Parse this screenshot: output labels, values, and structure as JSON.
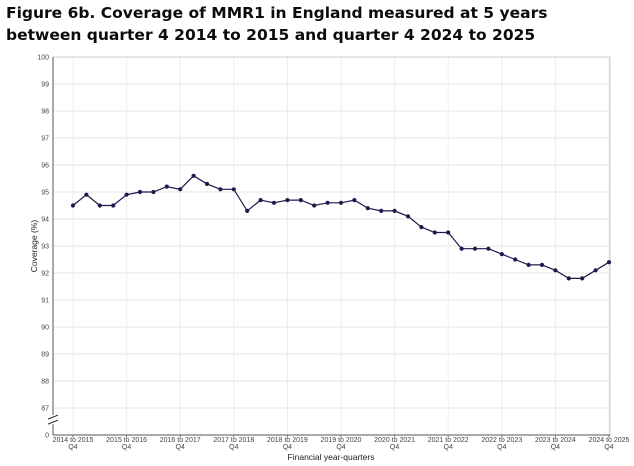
{
  "chart_data": {
    "type": "line",
    "title": "Figure 6b. Coverage of MMR1 in England measured at 5 years between quarter 4 2014 to 2015 and quarter 4 2024 to 2025",
    "xlabel": "Financial year-quarters",
    "ylabel": "Coverage (%)",
    "ylim": [
      86,
      100
    ],
    "y_ticks": [
      "0",
      "87",
      "88",
      "89",
      "90",
      "91",
      "92",
      "93",
      "94",
      "95",
      "96",
      "97",
      "98",
      "99",
      "100"
    ],
    "y_axis_break": true,
    "x_tick_labels": [
      {
        "line1": "2014 to 2015",
        "line2": "Q4"
      },
      {
        "line1": "2015 to 2016",
        "line2": "Q4"
      },
      {
        "line1": "2016 to 2017",
        "line2": "Q4"
      },
      {
        "line1": "2017 to 2018",
        "line2": "Q4"
      },
      {
        "line1": "2018 to 2019",
        "line2": "Q4"
      },
      {
        "line1": "2019 to 2020",
        "line2": "Q4"
      },
      {
        "line1": "2020 to 2021",
        "line2": "Q4"
      },
      {
        "line1": "2021 to 2022",
        "line2": "Q4"
      },
      {
        "line1": "2022 to 2023",
        "line2": "Q4"
      },
      {
        "line1": "2023 to 2024",
        "line2": "Q4"
      },
      {
        "line1": "2024 to 2025",
        "line2": "Q4"
      }
    ],
    "grid": true,
    "line_color": "#1d1a4f",
    "series": [
      {
        "values": [
          94.5,
          94.9,
          94.5,
          94.5,
          94.9,
          95.0,
          95.0,
          95.2,
          95.1,
          95.6,
          95.3,
          95.1,
          95.1,
          94.3,
          94.7,
          94.6,
          94.7,
          94.7,
          94.5,
          94.6,
          94.6,
          94.7,
          94.4,
          94.3,
          94.3,
          94.1,
          93.7,
          93.5,
          93.5,
          92.9,
          92.9,
          92.9,
          92.7,
          92.5,
          92.3,
          92.3,
          92.1,
          91.8,
          91.8,
          92.1,
          92.4
        ]
      }
    ]
  }
}
